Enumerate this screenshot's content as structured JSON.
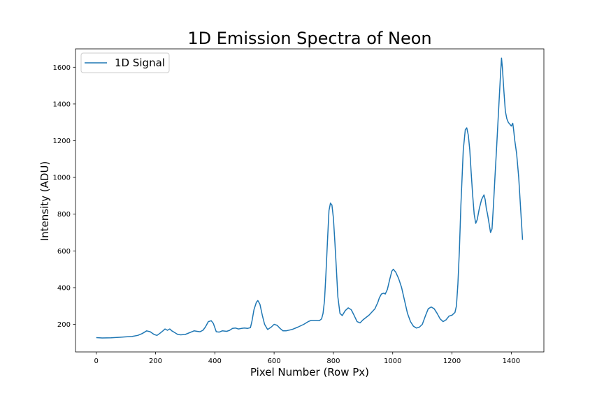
{
  "chart_data": {
    "type": "line",
    "title": "1D Emission Spectra of Neon",
    "xlabel": "Pixel Number (Row Px)",
    "ylabel": "Intensity (ADU)",
    "xlim": [
      -70,
      1510
    ],
    "ylim": [
      50,
      1700
    ],
    "xticks": [
      0,
      200,
      400,
      600,
      800,
      1000,
      1200,
      1400
    ],
    "yticks": [
      200,
      400,
      600,
      800,
      1000,
      1200,
      1400,
      1600
    ],
    "xtick_labels": [
      "0",
      "200",
      "400",
      "600",
      "800",
      "1000",
      "1200",
      "1400"
    ],
    "ytick_labels": [
      "200",
      "400",
      "600",
      "800",
      "1000",
      "1200",
      "1400",
      "1600"
    ],
    "grid": false,
    "legend_position": "top-left",
    "series": [
      {
        "name": "1D Signal",
        "color": "#1f77b4",
        "x": [
          0,
          20,
          50,
          80,
          100,
          120,
          140,
          155,
          170,
          182,
          195,
          205,
          215,
          225,
          232,
          240,
          248,
          255,
          265,
          275,
          285,
          300,
          330,
          340,
          350,
          360,
          368,
          378,
          388,
          395,
          405,
          415,
          425,
          440,
          450,
          460,
          470,
          480,
          490,
          500,
          510,
          520,
          525,
          532,
          540,
          545,
          552,
          560,
          568,
          578,
          590,
          600,
          610,
          620,
          630,
          640,
          660,
          680,
          700,
          715,
          725,
          740,
          752,
          760,
          765,
          770,
          775,
          780,
          785,
          790,
          795,
          800,
          805,
          810,
          815,
          822,
          830,
          840,
          850,
          860,
          868,
          880,
          890,
          900,
          920,
          940,
          950,
          955,
          962,
          970,
          975,
          982,
          990,
          997,
          1002,
          1010,
          1020,
          1030,
          1040,
          1050,
          1060,
          1070,
          1080,
          1090,
          1100,
          1110,
          1120,
          1130,
          1140,
          1150,
          1160,
          1170,
          1180,
          1190,
          1200,
          1210,
          1215,
          1220,
          1225,
          1230,
          1238,
          1245,
          1250,
          1255,
          1260,
          1265,
          1270,
          1275,
          1280,
          1285,
          1292,
          1300,
          1308,
          1312,
          1316,
          1320,
          1326,
          1330,
          1335,
          1340,
          1345,
          1350,
          1355,
          1360,
          1364,
          1367,
          1370,
          1375,
          1380,
          1385,
          1390,
          1395,
          1400,
          1405,
          1408,
          1412,
          1418,
          1425,
          1432,
          1438
        ],
        "values": [
          128,
          126,
          127,
          130,
          132,
          134,
          140,
          150,
          165,
          160,
          145,
          140,
          152,
          165,
          175,
          168,
          175,
          165,
          155,
          145,
          143,
          145,
          165,
          162,
          160,
          168,
          185,
          215,
          220,
          205,
          160,
          158,
          165,
          162,
          168,
          178,
          180,
          175,
          178,
          180,
          178,
          182,
          215,
          280,
          320,
          330,
          310,
          250,
          200,
          172,
          185,
          200,
          195,
          178,
          165,
          165,
          172,
          185,
          200,
          215,
          222,
          222,
          220,
          230,
          260,
          330,
          480,
          650,
          820,
          860,
          850,
          780,
          650,
          500,
          350,
          260,
          248,
          275,
          290,
          280,
          255,
          215,
          208,
          225,
          250,
          285,
          320,
          345,
          365,
          370,
          365,
          390,
          445,
          490,
          500,
          485,
          450,
          400,
          330,
          260,
          215,
          190,
          180,
          185,
          200,
          245,
          285,
          295,
          285,
          260,
          230,
          215,
          225,
          245,
          250,
          265,
          300,
          420,
          600,
          850,
          1150,
          1260,
          1270,
          1230,
          1150,
          1020,
          900,
          800,
          750,
          770,
          830,
          880,
          905,
          880,
          830,
          800,
          740,
          700,
          720,
          850,
          1000,
          1150,
          1300,
          1450,
          1570,
          1650,
          1600,
          1470,
          1360,
          1320,
          1300,
          1290,
          1280,
          1295,
          1260,
          1200,
          1130,
          1000,
          820,
          660
        ]
      }
    ]
  }
}
